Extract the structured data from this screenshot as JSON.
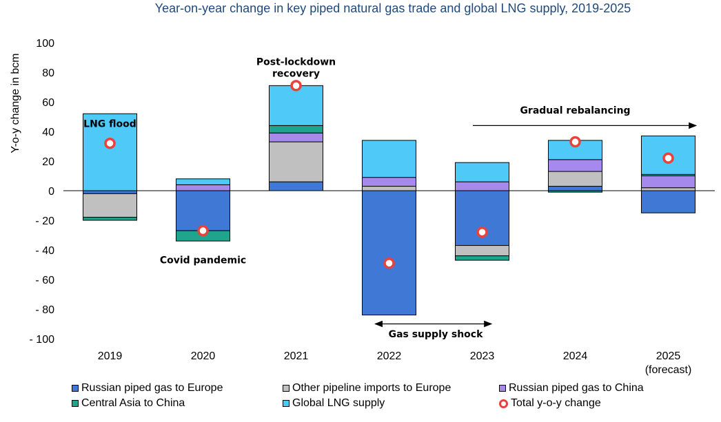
{
  "title": "Year-on-year change in key piped natural gas trade and global LNG supply, 2019-2025",
  "chart_data": {
    "type": "bar",
    "stacked": true,
    "title": "Year-on-year change in key piped natural gas trade and global LNG supply, 2019-2025",
    "xlabel": "",
    "ylabel": "Y-o-y change in bcm",
    "ylim": [
      -100,
      100
    ],
    "ytick_values": [
      100,
      80,
      60,
      40,
      20,
      0,
      -20,
      -40,
      -60,
      -80,
      -100
    ],
    "ytick_labels": [
      "100",
      "80",
      "60",
      "40",
      "20",
      "0",
      "- 20",
      "- 40",
      "- 60",
      "- 80",
      "- 100"
    ],
    "categories": [
      [
        "2019"
      ],
      [
        "2020"
      ],
      [
        "2021"
      ],
      [
        "2022"
      ],
      [
        "2023"
      ],
      [
        "2024"
      ],
      [
        "2025",
        "(forecast)"
      ]
    ],
    "series": [
      {
        "name": "Russian piped gas to Europe",
        "color": "#3f78d5",
        "values": [
          -2,
          -27,
          6,
          -84,
          -37,
          3,
          -15
        ]
      },
      {
        "name": "Other pipeline imports to Europe",
        "color": "#c0c0c0",
        "values": [
          -16,
          0,
          27,
          3,
          -7,
          10,
          2
        ]
      },
      {
        "name": "Russian piped gas to China",
        "color": "#a589ec",
        "values": [
          0,
          4,
          6,
          6,
          6,
          8,
          8
        ]
      },
      {
        "name": "Central Asia to China",
        "color": "#1fa58d",
        "values": [
          -2,
          -7,
          5,
          0,
          -3,
          -1,
          1
        ]
      },
      {
        "name": "Global LNG supply",
        "color": "#4fc9f7",
        "values": [
          52,
          4,
          27,
          25,
          13,
          13,
          26
        ]
      }
    ],
    "total": {
      "name": "Total y-o-y change",
      "color": "#e8423a",
      "values": [
        32,
        -27,
        71,
        -49,
        -28,
        33,
        22
      ]
    },
    "annotations": [
      {
        "text": [
          "LNG flood"
        ],
        "category": 0,
        "y": 43
      },
      {
        "text": [
          "Covid pandemic"
        ],
        "category": 1,
        "y": -49
      },
      {
        "text": [
          "Post-lockdown",
          "recovery"
        ],
        "category": 2,
        "y": 85
      },
      {
        "text": [
          "Gas supply shock"
        ],
        "category": 3.5,
        "y": -99
      },
      {
        "text": [
          "Gradual rebalancing"
        ],
        "category": 5,
        "y": 52
      }
    ],
    "arrows": [
      {
        "kind": "right",
        "from": 3.9,
        "to": 6.3,
        "y": 44
      },
      {
        "kind": "double",
        "from": 2.85,
        "to": 4.1,
        "y": -90
      }
    ],
    "legend_position": "bottom"
  }
}
